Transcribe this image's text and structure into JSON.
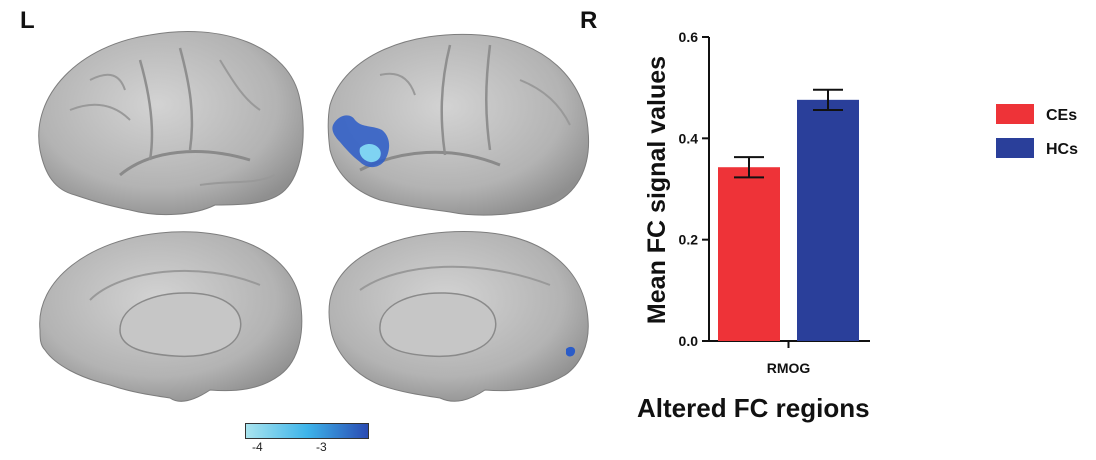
{
  "brain_panel": {
    "left_label": "L",
    "right_label": "R",
    "colorbar": {
      "tick_labels": [
        "-4",
        "-3"
      ],
      "color_low": "#a9e4ee",
      "color_mid": "#3db4ea",
      "color_high": "#2a4bb3"
    },
    "highlight_color": "#2b5cc8",
    "cortex_color": "#b9b9b9"
  },
  "chart_data": {
    "type": "bar",
    "categories": [
      "RMOG"
    ],
    "series": [
      {
        "name": "CEs",
        "values": [
          0.343
        ],
        "error": [
          0.02
        ],
        "color": "#ee3338"
      },
      {
        "name": "HCs",
        "values": [
          0.476
        ],
        "error": [
          0.02
        ],
        "color": "#2a3f9a"
      }
    ],
    "ylabel": "Mean FC signal values",
    "xlabel": "Altered FC regions",
    "ylim": [
      0.0,
      0.6
    ],
    "yticks": [
      "0.0",
      "0.2",
      "0.4",
      "0.6"
    ],
    "grid": false,
    "legend": "right"
  }
}
